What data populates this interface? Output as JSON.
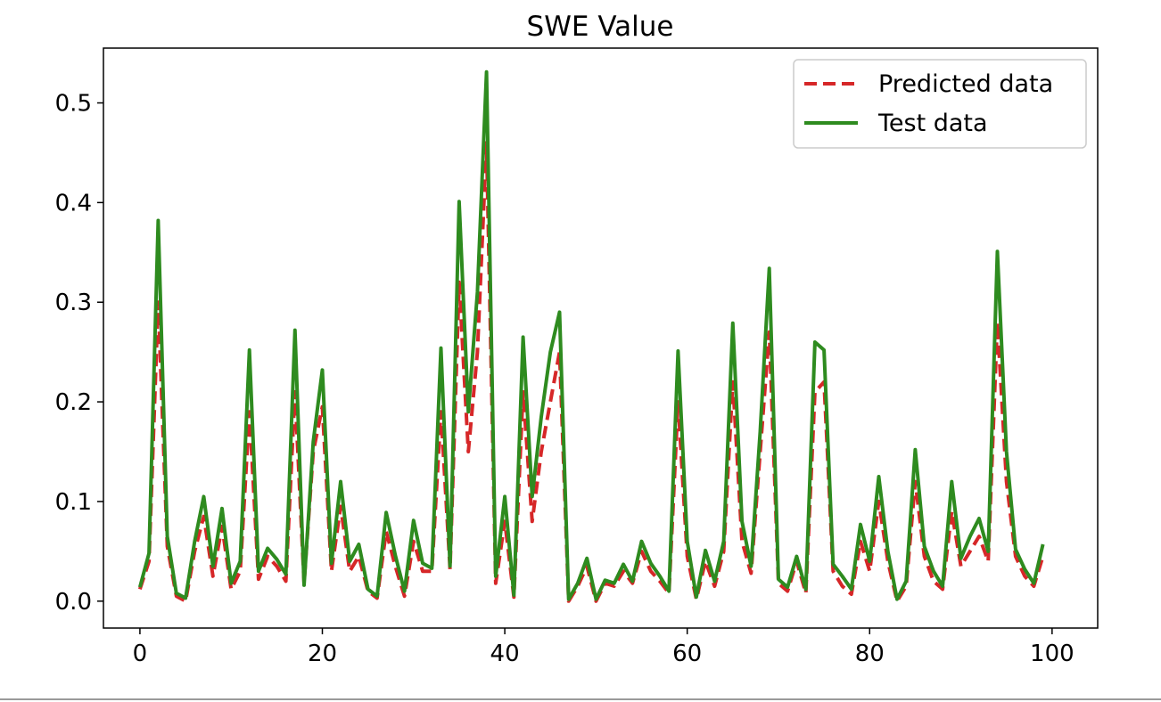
{
  "chart_data": {
    "type": "line",
    "title": "SWE Value",
    "xlabel": "",
    "ylabel": "",
    "xlim": [
      -4,
      105
    ],
    "ylim": [
      -0.027,
      0.555
    ],
    "xticks": [
      0,
      20,
      40,
      60,
      80,
      100
    ],
    "yticks": [
      0.0,
      0.1,
      0.2,
      0.3,
      0.4,
      0.5
    ],
    "xtick_labels": [
      "0",
      "20",
      "40",
      "60",
      "80",
      "100"
    ],
    "ytick_labels": [
      "0.0",
      "0.1",
      "0.2",
      "0.3",
      "0.4",
      "0.5"
    ],
    "grid": false,
    "legend_position": "top-right",
    "x": [
      0,
      1,
      2,
      3,
      4,
      5,
      6,
      7,
      8,
      9,
      10,
      11,
      12,
      13,
      14,
      15,
      16,
      17,
      18,
      19,
      20,
      21,
      22,
      23,
      24,
      25,
      26,
      27,
      28,
      29,
      30,
      31,
      32,
      33,
      34,
      35,
      36,
      37,
      38,
      39,
      40,
      41,
      42,
      43,
      44,
      45,
      46,
      47,
      48,
      49,
      50,
      51,
      52,
      53,
      54,
      55,
      56,
      57,
      58,
      59,
      60,
      61,
      62,
      63,
      64,
      65,
      66,
      67,
      68,
      69,
      70,
      71,
      72,
      73,
      74,
      75,
      76,
      77,
      78,
      79,
      80,
      81,
      82,
      83,
      84,
      85,
      86,
      87,
      88,
      89,
      90,
      91,
      92,
      93,
      94,
      95,
      96,
      97,
      98,
      99
    ],
    "series": [
      {
        "name": "Predicted data",
        "color": "#d62728",
        "style": "dashed",
        "values": [
          0.012,
          0.04,
          0.3,
          0.055,
          0.005,
          0.0,
          0.05,
          0.085,
          0.025,
          0.075,
          0.012,
          0.03,
          0.19,
          0.022,
          0.045,
          0.035,
          0.02,
          0.21,
          0.018,
          0.15,
          0.195,
          0.03,
          0.095,
          0.03,
          0.045,
          0.01,
          0.003,
          0.07,
          0.035,
          0.005,
          0.06,
          0.03,
          0.03,
          0.19,
          0.032,
          0.32,
          0.15,
          0.25,
          0.46,
          0.018,
          0.08,
          0.004,
          0.21,
          0.08,
          0.15,
          0.2,
          0.25,
          0.0,
          0.015,
          0.035,
          0.0,
          0.018,
          0.015,
          0.03,
          0.018,
          0.05,
          0.03,
          0.02,
          0.008,
          0.2,
          0.045,
          0.002,
          0.04,
          0.015,
          0.05,
          0.22,
          0.06,
          0.028,
          0.15,
          0.27,
          0.018,
          0.01,
          0.04,
          0.008,
          0.21,
          0.22,
          0.03,
          0.015,
          0.007,
          0.06,
          0.03,
          0.1,
          0.04,
          0.0,
          0.015,
          0.12,
          0.045,
          0.02,
          0.012,
          0.09,
          0.035,
          0.05,
          0.065,
          0.04,
          0.28,
          0.12,
          0.045,
          0.025,
          0.015,
          0.045
        ]
      },
      {
        "name": "Test data",
        "color": "#2e8b1f",
        "style": "solid",
        "values": [
          0.014,
          0.048,
          0.382,
          0.065,
          0.008,
          0.003,
          0.06,
          0.105,
          0.035,
          0.093,
          0.018,
          0.04,
          0.252,
          0.03,
          0.053,
          0.042,
          0.027,
          0.272,
          0.016,
          0.16,
          0.232,
          0.038,
          0.12,
          0.04,
          0.057,
          0.012,
          0.005,
          0.089,
          0.046,
          0.01,
          0.081,
          0.038,
          0.033,
          0.254,
          0.035,
          0.401,
          0.19,
          0.31,
          0.531,
          0.025,
          0.105,
          0.006,
          0.265,
          0.105,
          0.185,
          0.25,
          0.29,
          0.002,
          0.018,
          0.043,
          0.002,
          0.021,
          0.018,
          0.037,
          0.02,
          0.06,
          0.038,
          0.025,
          0.01,
          0.251,
          0.06,
          0.004,
          0.051,
          0.02,
          0.06,
          0.279,
          0.08,
          0.035,
          0.17,
          0.334,
          0.022,
          0.014,
          0.045,
          0.012,
          0.26,
          0.252,
          0.037,
          0.025,
          0.012,
          0.077,
          0.04,
          0.125,
          0.05,
          0.002,
          0.02,
          0.152,
          0.055,
          0.03,
          0.015,
          0.12,
          0.043,
          0.065,
          0.083,
          0.05,
          0.351,
          0.15,
          0.052,
          0.032,
          0.018,
          0.057
        ]
      }
    ]
  }
}
